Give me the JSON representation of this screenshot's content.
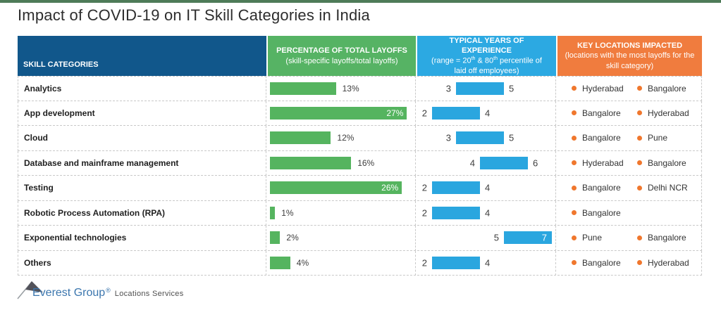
{
  "title": "Impact of COVID-19 on IT Skill Categories in India",
  "colors": {
    "top_strip": "#4e7b58",
    "header_skill": "#11578b",
    "header_layoffs": "#56b364",
    "header_experience": "#2ca9e2",
    "header_locations": "#f07c3e",
    "green_bar": "#55b45f",
    "blue_bar": "#2aa6df",
    "bullet": "#f0772d"
  },
  "table": {
    "headers": [
      {
        "label": "SKILL CATEGORIES",
        "color": "#11578b"
      },
      {
        "main": "PERCENTAGE OF TOTAL LAYOFFS",
        "sub": "(skill-specific layoffs/total layoffs)",
        "color": "#56b364"
      },
      {
        "main": "TYPICAL YEARS OF EXPERIENCE",
        "sub_parts": [
          "(range = 20",
          "th",
          " & 80",
          "th",
          " percentile of laid off employees)"
        ],
        "color": "#2ca9e2"
      },
      {
        "main": "KEY LOCATIONS IMPACTED",
        "sub": "(locations with the most layoffs for the skill category)",
        "color": "#f07c3e"
      }
    ],
    "rows": [
      {
        "label": "Analytics",
        "layoff_pct": 13,
        "layoff_label": "13%",
        "layoff_inside": false,
        "exp_min": 3,
        "exp_max": 5,
        "exp_inside": false,
        "locations": [
          "Hyderabad",
          "Bangalore"
        ]
      },
      {
        "label": "App development",
        "layoff_pct": 27,
        "layoff_label": "27%",
        "layoff_inside": true,
        "exp_min": 2,
        "exp_max": 4,
        "exp_inside": false,
        "locations": [
          "Bangalore",
          "Hyderabad"
        ]
      },
      {
        "label": "Cloud",
        "layoff_pct": 12,
        "layoff_label": "12%",
        "layoff_inside": false,
        "exp_min": 3,
        "exp_max": 5,
        "exp_inside": false,
        "locations": [
          "Bangalore",
          "Pune"
        ]
      },
      {
        "label": "Database and mainframe management",
        "layoff_pct": 16,
        "layoff_label": "16%",
        "layoff_inside": false,
        "exp_min": 4,
        "exp_max": 6,
        "exp_inside": false,
        "locations": [
          "Hyderabad",
          "Bangalore"
        ]
      },
      {
        "label": "Testing",
        "layoff_pct": 26,
        "layoff_label": "26%",
        "layoff_inside": true,
        "exp_min": 2,
        "exp_max": 4,
        "exp_inside": false,
        "locations": [
          "Bangalore",
          "Delhi NCR"
        ]
      },
      {
        "label": "Robotic Process Automation (RPA)",
        "layoff_pct": 1,
        "layoff_label": "1%",
        "layoff_inside": false,
        "exp_min": 2,
        "exp_max": 4,
        "exp_inside": false,
        "locations": [
          "Bangalore"
        ]
      },
      {
        "label": "Exponential technologies",
        "layoff_pct": 2,
        "layoff_label": "2%",
        "layoff_inside": false,
        "exp_min": 5,
        "exp_max": 7,
        "exp_inside": true,
        "locations": [
          "Pune",
          "Bangalore"
        ]
      },
      {
        "label": "Others",
        "layoff_pct": 4,
        "layoff_label": "4%",
        "layoff_inside": false,
        "exp_min": 2,
        "exp_max": 4,
        "exp_inside": false,
        "locations": [
          "Bangalore",
          "Hyderabad"
        ]
      }
    ]
  },
  "footer": {
    "brand": "Everest Group",
    "reg": "®",
    "suffix": "Locations Services"
  },
  "chart_data": {
    "type": "table",
    "title": "Impact of COVID-19 on IT Skill Categories in India",
    "columns": [
      "Skill categories",
      "Percentage of total layoffs (skill-specific layoffs/total layoffs)",
      "Typical years of experience (range = 20th & 80th percentile of laid off employees)",
      "Key locations impacted (locations with the most layoffs for the skill category)"
    ],
    "categories": [
      "Analytics",
      "App development",
      "Cloud",
      "Database and mainframe management",
      "Testing",
      "Robotic Process Automation (RPA)",
      "Exponential technologies",
      "Others"
    ],
    "series": [
      {
        "name": "Percentage of total layoffs",
        "type": "bar",
        "unit": "%",
        "values": [
          13,
          27,
          12,
          16,
          26,
          1,
          2,
          4
        ]
      },
      {
        "name": "Typical years of experience",
        "type": "range-bar",
        "unit": "years",
        "axis_range": [
          2,
          7
        ],
        "values": [
          [
            3,
            5
          ],
          [
            2,
            4
          ],
          [
            3,
            5
          ],
          [
            4,
            6
          ],
          [
            2,
            4
          ],
          [
            2,
            4
          ],
          [
            5,
            7
          ],
          [
            2,
            4
          ]
        ]
      },
      {
        "name": "Key locations impacted",
        "type": "list",
        "values": [
          [
            "Hyderabad",
            "Bangalore"
          ],
          [
            "Bangalore",
            "Hyderabad"
          ],
          [
            "Bangalore",
            "Pune"
          ],
          [
            "Hyderabad",
            "Bangalore"
          ],
          [
            "Bangalore",
            "Delhi NCR"
          ],
          [
            "Bangalore"
          ],
          [
            "Pune",
            "Bangalore"
          ],
          [
            "Bangalore",
            "Hyderabad"
          ]
        ]
      }
    ],
    "legend": false,
    "grid": "dashed-table-borders"
  }
}
